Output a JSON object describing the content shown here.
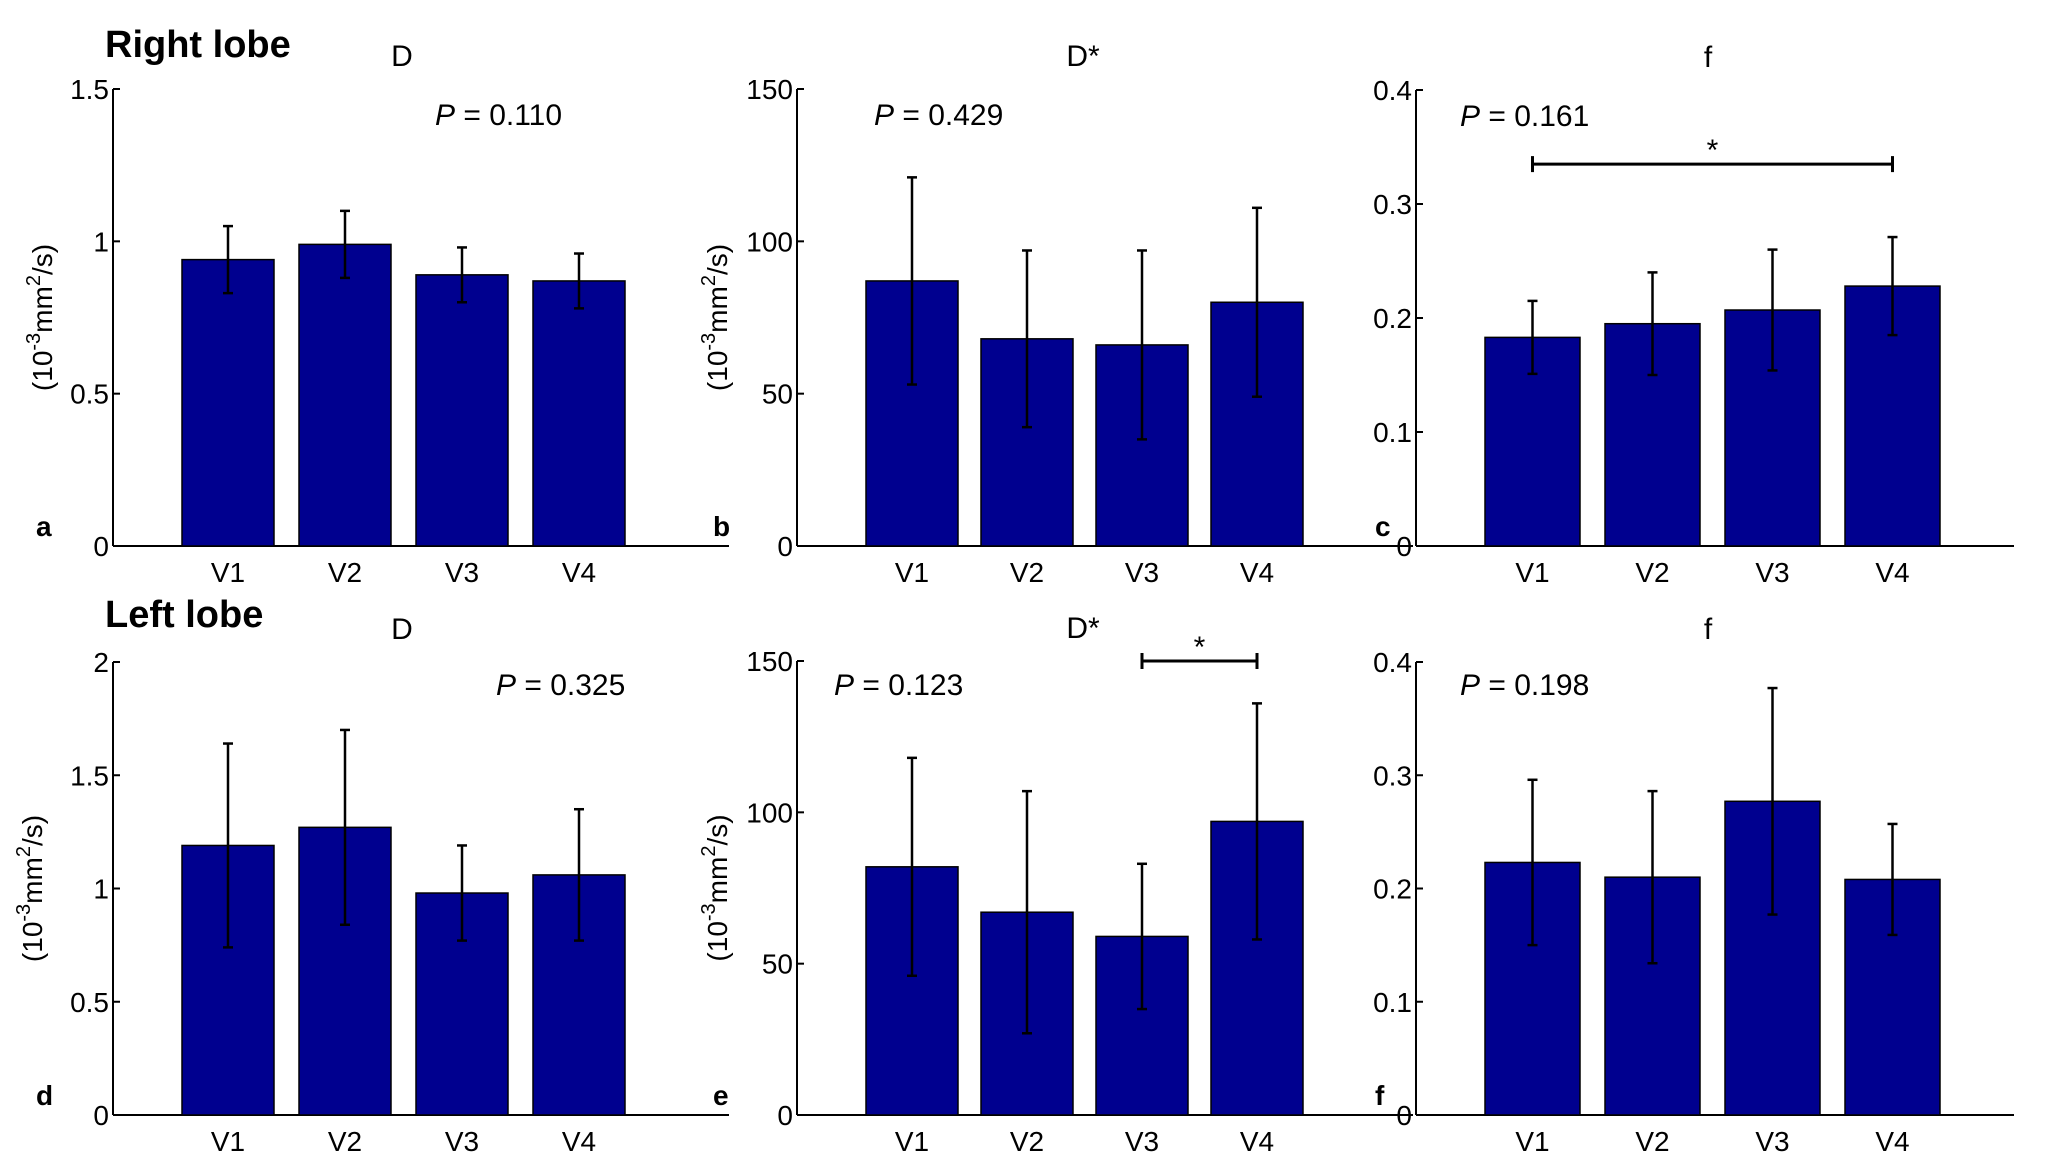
{
  "figure": {
    "row_labels": [
      "Right lobe",
      "Left lobe"
    ]
  },
  "chart_data": [
    {
      "type": "bar",
      "panel": "a",
      "row": "Right lobe",
      "title": "D",
      "categories": [
        "V1",
        "V2",
        "V3",
        "V4"
      ],
      "values": [
        0.94,
        0.99,
        0.89,
        0.87
      ],
      "errors": [
        0.11,
        0.11,
        0.09,
        0.09
      ],
      "ylim": [
        0,
        1.5
      ],
      "yticks": [
        0,
        0.5,
        1,
        1.5
      ],
      "ytick_labels": [
        "0",
        "0.5",
        "1",
        "1.5"
      ],
      "ylabel": "(10-3mm2/s)",
      "ylabel_parts": [
        "(10",
        "-3",
        "mm",
        "2",
        "/s)"
      ],
      "p_label": "P",
      "p_value": " = 0.110",
      "significance": []
    },
    {
      "type": "bar",
      "panel": "b",
      "row": "Right lobe",
      "title": "D*",
      "categories": [
        "V1",
        "V2",
        "V3",
        "V4"
      ],
      "values": [
        87,
        68,
        66,
        80
      ],
      "errors": [
        34,
        29,
        31,
        31
      ],
      "ylim": [
        0,
        150
      ],
      "yticks": [
        0,
        50,
        100,
        150
      ],
      "ytick_labels": [
        "0",
        "50",
        "100",
        "150"
      ],
      "ylabel": "(10-3mm2/s)",
      "ylabel_parts": [
        "(10",
        "-3",
        "mm",
        "2",
        "/s)"
      ],
      "p_label": "P",
      "p_value": " = 0.429",
      "significance": []
    },
    {
      "type": "bar",
      "panel": "c",
      "row": "Right lobe",
      "title": "f",
      "categories": [
        "V1",
        "V2",
        "V3",
        "V4"
      ],
      "values": [
        0.183,
        0.195,
        0.207,
        0.228
      ],
      "errors": [
        0.032,
        0.045,
        0.053,
        0.043
      ],
      "ylim": [
        0,
        0.4
      ],
      "yticks": [
        0,
        0.1,
        0.2,
        0.3,
        0.4
      ],
      "ytick_labels": [
        "0",
        "0.1",
        "0.2",
        "0.3",
        "0.4"
      ],
      "ylabel": "",
      "ylabel_parts": [],
      "p_label": "P",
      "p_value": " = 0.161",
      "significance": [
        {
          "from": "V1",
          "to": "V4",
          "label": "*",
          "level": 0.335
        }
      ]
    },
    {
      "type": "bar",
      "panel": "d",
      "row": "Left lobe",
      "title": "D",
      "categories": [
        "V1",
        "V2",
        "V3",
        "V4"
      ],
      "values": [
        1.19,
        1.27,
        0.98,
        1.06
      ],
      "errors": [
        0.45,
        0.43,
        0.21,
        0.29
      ],
      "ylim": [
        0,
        2
      ],
      "yticks": [
        0,
        0.5,
        1,
        1.5,
        2
      ],
      "ytick_labels": [
        "0",
        "0.5",
        "1",
        "1.5",
        "2"
      ],
      "ylabel": "(10-3mm2/s)",
      "ylabel_parts": [
        "(10",
        "-3",
        "mm",
        "2",
        "/s)"
      ],
      "p_label": "P",
      "p_value": " = 0.325",
      "significance": []
    },
    {
      "type": "bar",
      "panel": "e",
      "row": "Left lobe",
      "title": "D*",
      "categories": [
        "V1",
        "V2",
        "V3",
        "V4"
      ],
      "values": [
        82,
        67,
        59,
        97
      ],
      "errors": [
        36,
        40,
        24,
        39
      ],
      "ylim": [
        0,
        150
      ],
      "yticks": [
        0,
        50,
        100,
        150
      ],
      "ytick_labels": [
        "0",
        "50",
        "100",
        "150"
      ],
      "ylabel": "(10-3mm2/s)",
      "ylabel_parts": [
        "(10",
        "-3",
        "mm",
        "2",
        "/s)"
      ],
      "p_label": "P",
      "p_value": " = 0.123",
      "significance": [
        {
          "from": "V3",
          "to": "V4",
          "label": "*",
          "level": 150
        }
      ]
    },
    {
      "type": "bar",
      "panel": "f",
      "row": "Left lobe",
      "title": "f",
      "categories": [
        "V1",
        "V2",
        "V3",
        "V4"
      ],
      "values": [
        0.223,
        0.21,
        0.277,
        0.208
      ],
      "errors": [
        0.073,
        0.076,
        0.1,
        0.049
      ],
      "ylim": [
        0,
        0.4
      ],
      "yticks": [
        0,
        0.1,
        0.2,
        0.3,
        0.4
      ],
      "ytick_labels": [
        "0",
        "0.1",
        "0.2",
        "0.3",
        "0.4"
      ],
      "ylabel": "",
      "ylabel_parts": [],
      "p_label": "P",
      "p_value": " = 0.198",
      "significance": []
    }
  ]
}
